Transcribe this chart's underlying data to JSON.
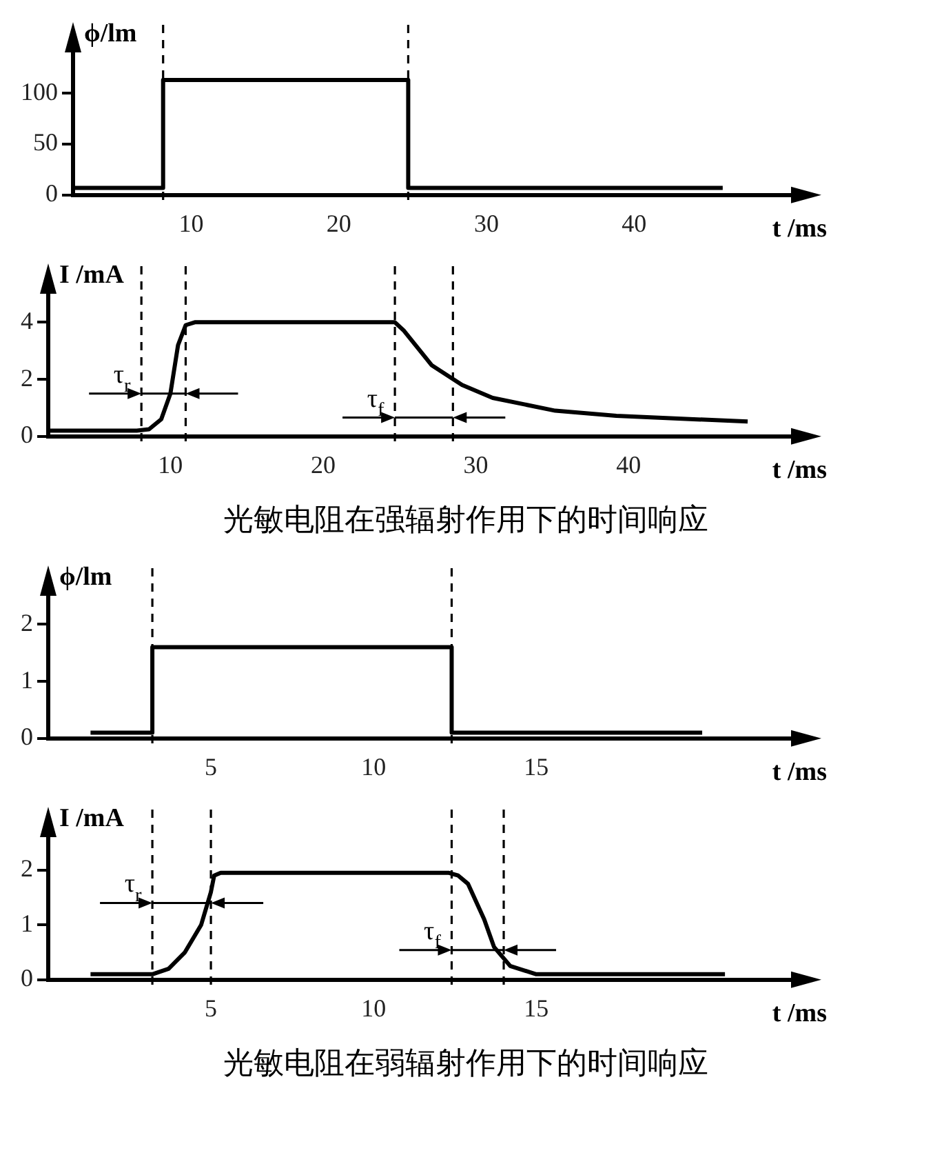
{
  "chart_data": [
    {
      "type": "step",
      "ylabel": "ϕ/lm",
      "xlabel": "t /ms",
      "color": "#000000",
      "marker": "none",
      "line_style": "solid",
      "x": [
        2,
        8.1,
        24.7,
        46
      ],
      "values": [
        7,
        113,
        7,
        7
      ],
      "xlim": [
        2,
        51
      ],
      "xticks": [
        10,
        20,
        30,
        40
      ],
      "ylim": [
        0,
        140
      ],
      "yticks": [
        0,
        50,
        100
      ],
      "ref_lines": [
        {
          "axis": "x",
          "value": 8.1,
          "line_style": "dashed",
          "color": "#000000"
        },
        {
          "axis": "x",
          "value": 24.7,
          "line_style": "dashed",
          "color": "#000000"
        }
      ]
    },
    {
      "type": "line",
      "ylabel": "I /mA",
      "xlabel": "t /ms",
      "color": "#000000",
      "marker": "none",
      "line_style": "solid",
      "x": [
        2,
        7.8,
        8.6,
        9.4,
        10.0,
        10.5,
        11.0,
        11.6,
        24.7,
        25.3,
        25.9,
        27.1,
        29.1,
        31.1,
        35.2,
        39.2,
        47.8
      ],
      "values": [
        0.2,
        0.2,
        0.25,
        0.6,
        1.5,
        3.2,
        3.9,
        4.0,
        4.0,
        3.7,
        3.3,
        2.5,
        1.8,
        1.35,
        0.9,
        0.72,
        0.52
      ],
      "xlim": [
        2,
        51
      ],
      "xticks": [
        10,
        20,
        30,
        40
      ],
      "ylim": [
        0,
        5
      ],
      "yticks": [
        0,
        2,
        4
      ],
      "ref_lines": [
        {
          "axis": "x",
          "value": 8.1,
          "line_style": "dashed",
          "color": "#000000"
        },
        {
          "axis": "x",
          "value": 11,
          "line_style": "dashed",
          "color": "#000000"
        },
        {
          "axis": "x",
          "value": 24.7,
          "line_style": "dashed",
          "color": "#000000"
        },
        {
          "axis": "x",
          "value": 28.5,
          "line_style": "dashed",
          "color": "#000000"
        }
      ],
      "annotations": [
        {
          "text": "τ$_{r}$",
          "x": 8.1,
          "y": 1.5
        },
        {
          "text": "τ$_{f}$",
          "x": 24.7,
          "y": 0.66
        },
        "光敏电阻在强辐射作用下的时间响应"
      ]
    },
    {
      "type": "step",
      "ylabel": "ϕ/lm",
      "xlabel": "t /ms",
      "color": "#000000",
      "marker": "none",
      "line_style": "solid",
      "x": [
        1.3,
        3.2,
        12.4,
        20.1
      ],
      "values": [
        0.1,
        1.6,
        0.1,
        0.1
      ],
      "xlim": [
        0,
        23
      ],
      "xticks": [
        5,
        10,
        15
      ],
      "ylim": [
        0,
        2.5
      ],
      "yticks": [
        0,
        1,
        2
      ],
      "ref_lines": [
        {
          "axis": "x",
          "value": 3.2,
          "line_style": "dashed",
          "color": "#000000"
        },
        {
          "axis": "x",
          "value": 12.4,
          "line_style": "dashed",
          "color": "#000000"
        }
      ]
    },
    {
      "type": "line",
      "ylabel": "I /mA",
      "xlabel": "t /ms",
      "color": "#000000",
      "marker": "none",
      "line_style": "solid",
      "x": [
        1.3,
        3.2,
        3.7,
        4.2,
        4.7,
        5.0,
        5.1,
        5.3,
        12.3,
        12.6,
        12.9,
        13.4,
        13.7,
        14.2,
        15.0,
        20.8
      ],
      "values": [
        0.1,
        0.1,
        0.2,
        0.5,
        1.0,
        1.6,
        1.9,
        1.95,
        1.95,
        1.9,
        1.75,
        1.1,
        0.6,
        0.25,
        0.1,
        0.1
      ],
      "xlim": [
        0,
        23
      ],
      "xticks": [
        5,
        10,
        15
      ],
      "ylim": [
        0,
        2.6
      ],
      "yticks": [
        0,
        1,
        2
      ],
      "ref_lines": [
        {
          "axis": "x",
          "value": 3.2,
          "line_style": "dashed",
          "color": "#000000"
        },
        {
          "axis": "x",
          "value": 5.0,
          "line_style": "dashed",
          "color": "#000000"
        },
        {
          "axis": "x",
          "value": 12.4,
          "line_style": "dashed",
          "color": "#000000"
        },
        {
          "axis": "x",
          "value": 14.0,
          "line_style": "dashed",
          "color": "#000000"
        }
      ],
      "annotations": [
        {
          "text": "τ$_{r}$",
          "x": 3.2,
          "y": 1.4
        },
        {
          "text": "τ$_{f}$",
          "x": 12.4,
          "y": 0.54
        },
        "光敏电阻在弱辐射作用下的时间响应"
      ]
    }
  ]
}
